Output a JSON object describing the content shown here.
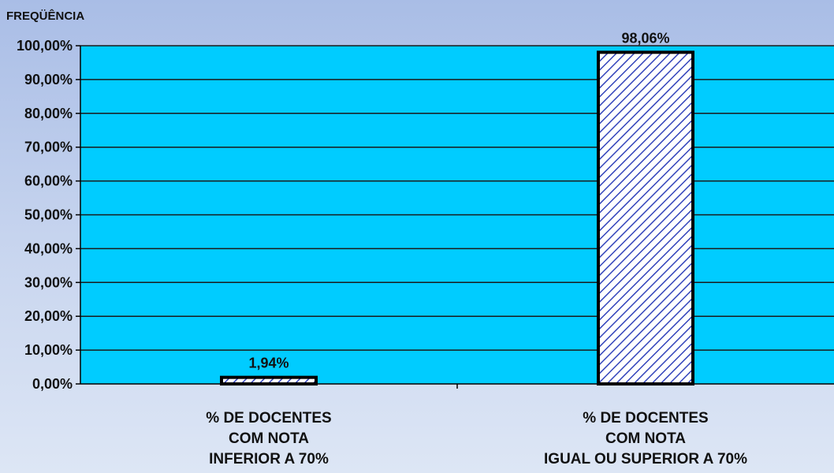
{
  "colors": {
    "plot_area": "#00ccff",
    "bar_stripe": "#3344bb",
    "bar_fill": "#ffffff",
    "bar_outline": "#000000",
    "gridline": "#1a1a1a"
  },
  "chart_data": {
    "type": "bar",
    "title": "",
    "xlabel": "",
    "ylabel": "FREQÜÊNCIA",
    "ylim": [
      0,
      100
    ],
    "yticks": [
      "0,00%",
      "10,00%",
      "20,00%",
      "30,00%",
      "40,00%",
      "50,00%",
      "60,00%",
      "70,00%",
      "80,00%",
      "90,00%",
      "100,00%"
    ],
    "categories": [
      [
        "% DE DOCENTES",
        "COM NOTA",
        "INFERIOR A 70%"
      ],
      [
        "% DE DOCENTES",
        "COM NOTA",
        "IGUAL OU SUPERIOR A 70%"
      ]
    ],
    "values": [
      1.94,
      98.06
    ],
    "data_labels": [
      "1,94%",
      "98,06%"
    ],
    "grid": true,
    "legend": "none"
  }
}
